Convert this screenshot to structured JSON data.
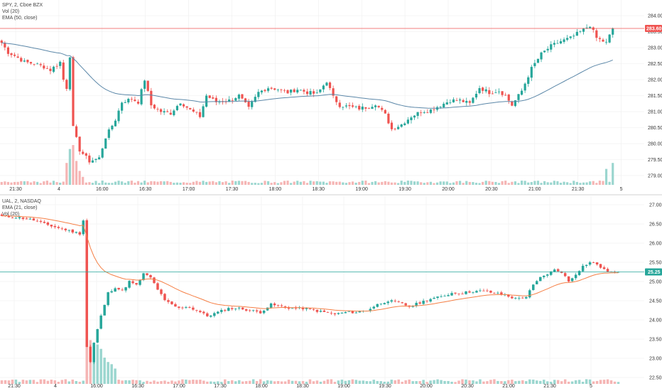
{
  "colors": {
    "up": "#26a69a",
    "down": "#ef5350",
    "volume_up": "#9bd6cf",
    "volume_down": "#f5b5b4",
    "ema_spy": "#5b87a8",
    "ema_ual": "#f57f45",
    "grid": "#eeeeee",
    "axis_text": "#333333",
    "spy_last_line": "#ef5350",
    "ual_last_line": "#26a69a"
  },
  "chart_data": [
    {
      "type": "candlestick",
      "legend": [
        "SPY, 2, Cboe BZX",
        "Vol (20)",
        "EMA (50, close)"
      ],
      "last_price_label": "283.60",
      "last_price": 283.6,
      "y_ticks": [
        "284.00",
        "283.50",
        "283.00",
        "282.50",
        "282.00",
        "281.50",
        "281.00",
        "280.50",
        "280.00",
        "279.50",
        "279.00"
      ],
      "ylim": [
        278.7,
        284.25
      ],
      "x_ticks": [
        "21:30",
        "4",
        "16:00",
        "16:30",
        "17:00",
        "17:30",
        "18:00",
        "18:30",
        "19:00",
        "19:30",
        "20:00",
        "20:30",
        "21:00",
        "21:30",
        "5"
      ],
      "close_anchors": [
        [
          0,
          283.15
        ],
        [
          2,
          282.85
        ],
        [
          4,
          282.75
        ],
        [
          7,
          282.55
        ],
        [
          10,
          282.5
        ],
        [
          13,
          282.4
        ],
        [
          15,
          282.3
        ],
        [
          18,
          282.55
        ],
        [
          19,
          282.0
        ],
        [
          20,
          281.75
        ],
        [
          21,
          282.75
        ],
        [
          22,
          280.5
        ],
        [
          24,
          279.8
        ],
        [
          27,
          279.45
        ],
        [
          30,
          279.55
        ],
        [
          32,
          280.2
        ],
        [
          35,
          280.75
        ],
        [
          37,
          281.3
        ],
        [
          40,
          281.4
        ],
        [
          42,
          281.3
        ],
        [
          44,
          282.0
        ],
        [
          46,
          281.2
        ],
        [
          49,
          281.0
        ],
        [
          52,
          280.95
        ],
        [
          55,
          281.3
        ],
        [
          58,
          281.05
        ],
        [
          61,
          280.85
        ],
        [
          63,
          281.5
        ],
        [
          66,
          281.3
        ],
        [
          70,
          281.35
        ],
        [
          73,
          281.5
        ],
        [
          76,
          281.1
        ],
        [
          79,
          281.6
        ],
        [
          82,
          281.75
        ],
        [
          85,
          281.7
        ],
        [
          88,
          281.6
        ],
        [
          91,
          281.7
        ],
        [
          94,
          281.6
        ],
        [
          97,
          281.55
        ],
        [
          100,
          281.95
        ],
        [
          102,
          281.45
        ],
        [
          104,
          281.2
        ],
        [
          107,
          281.15
        ],
        [
          110,
          281.1
        ],
        [
          113,
          281.15
        ],
        [
          115,
          281.25
        ],
        [
          118,
          280.9
        ],
        [
          120,
          280.45
        ],
        [
          123,
          280.6
        ],
        [
          126,
          280.85
        ],
        [
          129,
          281.0
        ],
        [
          132,
          281.05
        ],
        [
          135,
          281.2
        ],
        [
          138,
          281.35
        ],
        [
          141,
          281.35
        ],
        [
          144,
          281.25
        ],
        [
          147,
          281.75
        ],
        [
          150,
          281.6
        ],
        [
          153,
          281.65
        ],
        [
          155,
          281.5
        ],
        [
          157,
          281.2
        ],
        [
          160,
          281.65
        ],
        [
          163,
          282.35
        ],
        [
          166,
          282.8
        ],
        [
          169,
          283.05
        ],
        [
          172,
          283.2
        ],
        [
          175,
          283.3
        ],
        [
          178,
          283.5
        ],
        [
          181,
          283.7
        ],
        [
          183,
          283.3
        ],
        [
          186,
          283.15
        ],
        [
          188,
          283.6
        ]
      ],
      "volume_peak_anchors": [
        [
          20,
          0.55
        ],
        [
          21,
          0.9
        ],
        [
          22,
          1.0
        ],
        [
          23,
          0.6
        ],
        [
          24,
          0.35
        ],
        [
          25,
          0.2
        ],
        [
          186,
          0.4
        ],
        [
          188,
          0.55
        ]
      ],
      "ema_period": 50,
      "candle_count": 189
    },
    {
      "type": "candlestick",
      "legend": [
        "UAL, 2, NASDAQ",
        "EMA (21, close)",
        "Vol (20)"
      ],
      "last_price_label": "25.25",
      "last_price": 25.25,
      "y_ticks": [
        "27.00",
        "26.50",
        "26.00",
        "25.50",
        "25.00",
        "24.50",
        "24.00",
        "23.50",
        "23.00",
        "22.50"
      ],
      "ylim": [
        22.2,
        27.2
      ],
      "x_ticks": [
        "21:30",
        "4",
        "16:00",
        "16:30",
        "17:00",
        "17:30",
        "18:00",
        "18:30",
        "19:00",
        "19:30",
        "20:00",
        "20:30",
        "21:00",
        "21:30",
        "5"
      ],
      "close_anchors": [
        [
          0,
          26.7
        ],
        [
          3,
          26.68
        ],
        [
          6,
          26.65
        ],
        [
          9,
          26.6
        ],
        [
          12,
          26.5
        ],
        [
          15,
          26.42
        ],
        [
          18,
          26.35
        ],
        [
          20,
          26.3
        ],
        [
          22,
          26.25
        ],
        [
          23,
          26.6
        ],
        [
          24,
          23.3
        ],
        [
          25,
          22.9
        ],
        [
          26,
          23.4
        ],
        [
          28,
          24.1
        ],
        [
          30,
          24.7
        ],
        [
          32,
          24.85
        ],
        [
          34,
          24.75
        ],
        [
          36,
          25.0
        ],
        [
          38,
          24.9
        ],
        [
          40,
          25.2
        ],
        [
          42,
          25.1
        ],
        [
          44,
          24.8
        ],
        [
          46,
          24.5
        ],
        [
          48,
          24.4
        ],
        [
          50,
          24.3
        ],
        [
          52,
          24.35
        ],
        [
          55,
          24.25
        ],
        [
          58,
          24.1
        ],
        [
          61,
          24.2
        ],
        [
          64,
          24.3
        ],
        [
          67,
          24.3
        ],
        [
          70,
          24.25
        ],
        [
          73,
          24.2
        ],
        [
          76,
          24.4
        ],
        [
          79,
          24.35
        ],
        [
          82,
          24.3
        ],
        [
          85,
          24.3
        ],
        [
          88,
          24.25
        ],
        [
          91,
          24.2
        ],
        [
          94,
          24.15
        ],
        [
          97,
          24.2
        ],
        [
          100,
          24.2
        ],
        [
          103,
          24.25
        ],
        [
          106,
          24.4
        ],
        [
          109,
          24.5
        ],
        [
          112,
          24.45
        ],
        [
          115,
          24.35
        ],
        [
          118,
          24.45
        ],
        [
          121,
          24.55
        ],
        [
          124,
          24.6
        ],
        [
          127,
          24.7
        ],
        [
          130,
          24.7
        ],
        [
          133,
          24.75
        ],
        [
          136,
          24.75
        ],
        [
          139,
          24.7
        ],
        [
          142,
          24.65
        ],
        [
          145,
          24.55
        ],
        [
          148,
          24.6
        ],
        [
          150,
          24.9
        ],
        [
          152,
          25.1
        ],
        [
          154,
          25.2
        ],
        [
          156,
          25.3
        ],
        [
          158,
          25.25
        ],
        [
          160,
          25.0
        ],
        [
          162,
          25.2
        ],
        [
          164,
          25.4
        ],
        [
          166,
          25.5
        ],
        [
          168,
          25.45
        ],
        [
          170,
          25.3
        ],
        [
          172,
          25.25
        ],
        [
          174,
          25.25
        ]
      ],
      "volume_peak_anchors": [
        [
          24,
          0.95
        ],
        [
          25,
          1.0
        ],
        [
          26,
          0.85
        ],
        [
          27,
          0.9
        ],
        [
          28,
          0.8
        ],
        [
          29,
          0.6
        ],
        [
          30,
          0.5
        ],
        [
          31,
          0.45
        ],
        [
          32,
          0.35
        ]
      ],
      "ema_period": 21,
      "candle_count": 175
    }
  ]
}
